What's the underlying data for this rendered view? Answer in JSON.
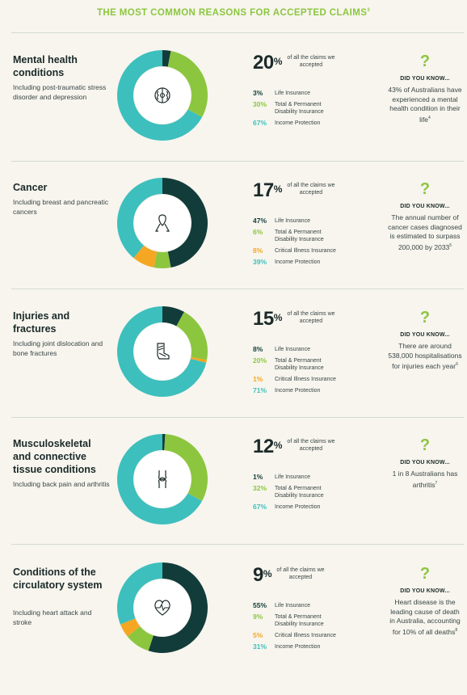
{
  "title": "THE MOST COMMON REASONS FOR ACCEPTED CLAIMS",
  "title_ref": "3",
  "colors": {
    "life": "#123c3a",
    "tpd": "#8cc63f",
    "critical": "#f5a623",
    "income": "#3dbfbd",
    "accent": "#8cc63f"
  },
  "sections": [
    {
      "title": "Mental health conditions",
      "description": "Including post-traumatic stress disorder and depression",
      "icon": "brain-gear-icon",
      "percent": "20",
      "caption": "of all the claims we accepted",
      "breakdown": [
        {
          "value": "3%",
          "label": "Life Insurance",
          "key": "life",
          "share": 3
        },
        {
          "value": "30%",
          "label": "Total & Permanent Disability Insurance",
          "key": "tpd",
          "share": 30
        },
        {
          "value": "67%",
          "label": "Income Protection",
          "key": "income",
          "share": 67
        }
      ],
      "dyk_heading": "DID YOU KNOW...",
      "dyk_text": "43% of Australians have experienced a mental health condition in their life",
      "dyk_ref": "4"
    },
    {
      "title": "Cancer",
      "description": "Including breast and pancreatic cancers",
      "icon": "cancer-ribbon-icon",
      "percent": "17",
      "caption": "of all the claims we accepted",
      "breakdown": [
        {
          "value": "47%",
          "label": "Life Insurance",
          "key": "life",
          "share": 47
        },
        {
          "value": "6%",
          "label": "Total & Permanent Disability Insurance",
          "key": "tpd",
          "share": 6
        },
        {
          "value": "8%",
          "label": "Critical Illness Insurance",
          "key": "critical",
          "share": 8
        },
        {
          "value": "39%",
          "label": "Income Protection",
          "key": "income",
          "share": 39
        }
      ],
      "dyk_heading": "DID YOU KNOW...",
      "dyk_text": "The annual number of cancer cases diagnosed is estimated to surpass 200,000 by 2033",
      "dyk_ref": "5"
    },
    {
      "title": "Injuries and fractures",
      "description": "Including joint dislocation and bone fractures",
      "icon": "leg-cast-icon",
      "percent": "15",
      "caption": "of all the claims we accepted",
      "breakdown": [
        {
          "value": "8%",
          "label": "Life Insurance",
          "key": "life",
          "share": 8
        },
        {
          "value": "20%",
          "label": "Total & Permanent Disability Insurance",
          "key": "tpd",
          "share": 20
        },
        {
          "value": "1%",
          "label": "Critical Illness Insurance",
          "key": "critical",
          "share": 1
        },
        {
          "value": "71%",
          "label": "Income Protection",
          "key": "income",
          "share": 71
        }
      ],
      "dyk_heading": "DID YOU KNOW...",
      "dyk_text": "There are around 538,000 hospitalisations for injuries each year",
      "dyk_ref": "6"
    },
    {
      "title": "Musculoskeletal and connective tissue conditions",
      "description": "Including back pain and arthritis",
      "icon": "knee-joint-icon",
      "percent": "12",
      "caption": "of all the claims we accepted",
      "breakdown": [
        {
          "value": "1%",
          "label": "Life Insurance",
          "key": "life",
          "share": 1
        },
        {
          "value": "32%",
          "label": "Total & Permanent Disability Insurance",
          "key": "tpd",
          "share": 32
        },
        {
          "value": "67%",
          "label": "Income Protection",
          "key": "income",
          "share": 67
        }
      ],
      "dyk_heading": "DID YOU KNOW...",
      "dyk_text": "1 in 8 Australians has arthritis",
      "dyk_ref": "7"
    },
    {
      "title": "Conditions of the circulatory system",
      "description": "Including heart attack and stroke",
      "icon": "heart-pulse-icon",
      "percent": "9",
      "caption": "of all the claims we accepted",
      "breakdown": [
        {
          "value": "55%",
          "label": "Life Insurance",
          "key": "life",
          "share": 55
        },
        {
          "value": "9%",
          "label": "Total & Permanent Disability Insurance",
          "key": "tpd",
          "share": 9
        },
        {
          "value": "5%",
          "label": "Critical Illness Insurance",
          "key": "critical",
          "share": 5
        },
        {
          "value": "31%",
          "label": "Income Protection",
          "key": "income",
          "share": 31
        }
      ],
      "dyk_heading": "DID YOU KNOW...",
      "dyk_text": "Heart disease is the leading cause of death in Australia, accounting for 10% of all deaths",
      "dyk_ref": "8"
    }
  ]
}
